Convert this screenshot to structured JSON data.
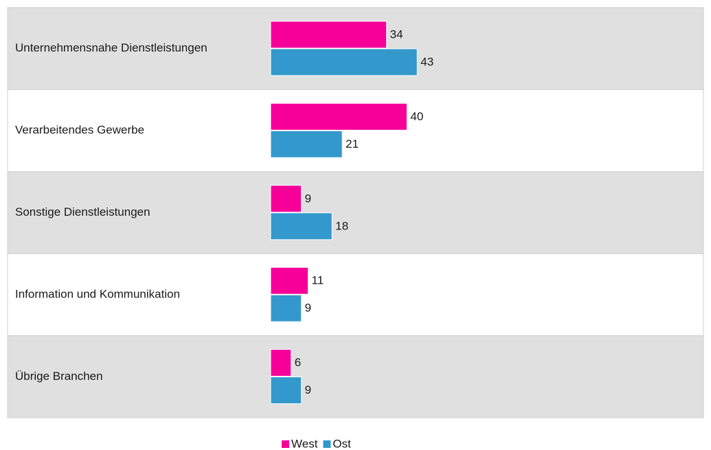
{
  "chart_data": {
    "type": "bar",
    "orientation": "horizontal",
    "categories": [
      "Unternehmensnahe Dienstleistungen",
      "Verarbeitendes Gewerbe",
      "Sonstige Dienstleistungen",
      "Information und Kommunikation",
      "Übrige Branchen"
    ],
    "series": [
      {
        "name": "West",
        "color": "#f7009a",
        "values": [
          34,
          40,
          9,
          11,
          6
        ]
      },
      {
        "name": "Ost",
        "color": "#3399cc",
        "values": [
          43,
          21,
          18,
          9,
          9
        ]
      }
    ],
    "legend": "bottom"
  }
}
